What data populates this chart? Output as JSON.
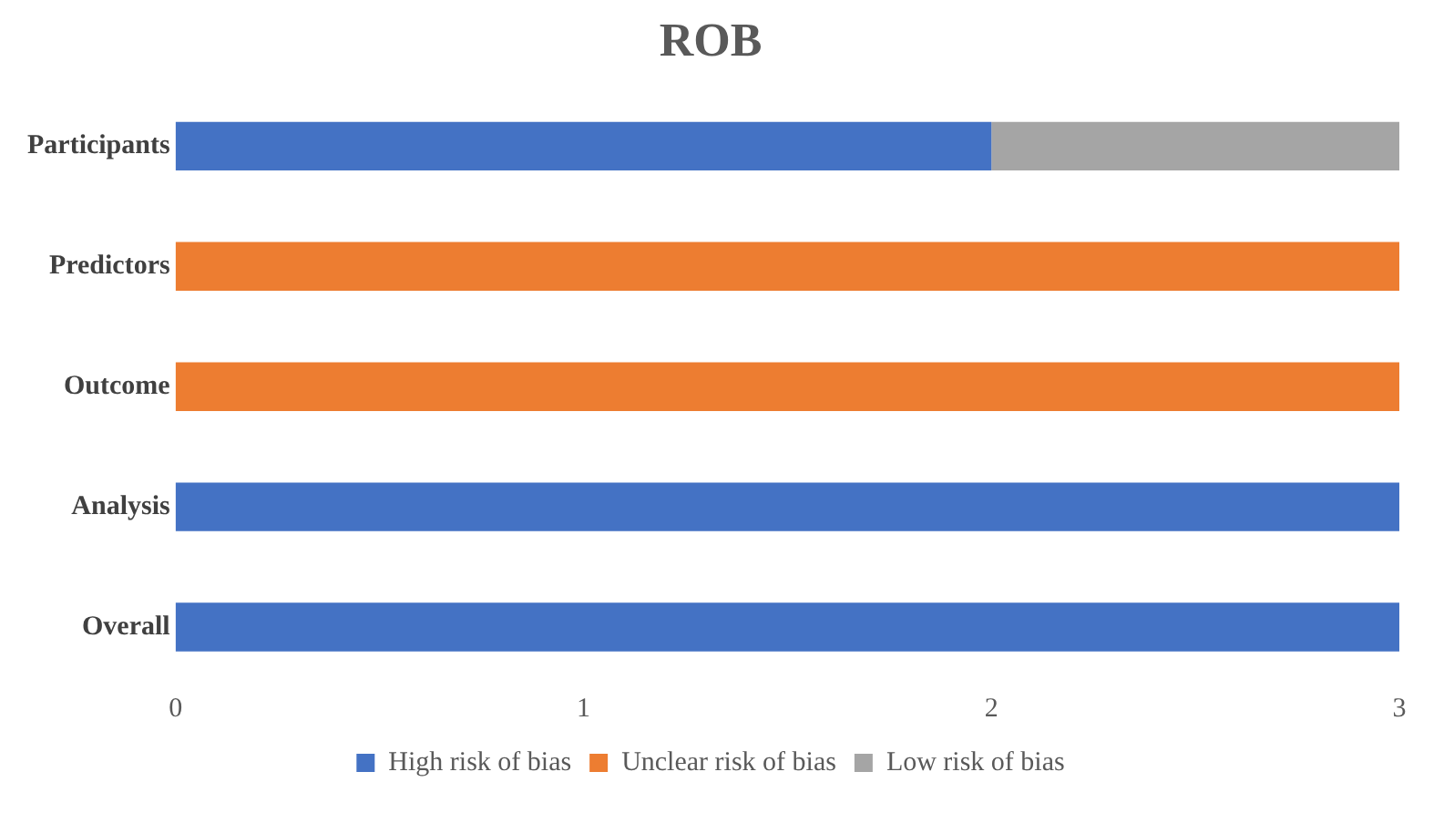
{
  "chart_data": {
    "type": "bar",
    "title": "ROB",
    "orientation": "horizontal",
    "stacked": true,
    "categories": [
      "Participants",
      "Predictors",
      "Outcome",
      "Analysis",
      "Overall"
    ],
    "series": [
      {
        "name": "High risk of bias",
        "color": "#4472c4",
        "values": [
          2,
          0,
          0,
          3,
          3
        ]
      },
      {
        "name": "Unclear risk of bias",
        "color": "#ed7d31",
        "values": [
          0,
          3,
          3,
          0,
          0
        ]
      },
      {
        "name": "Low risk of bias",
        "color": "#a5a5a5",
        "values": [
          1,
          0,
          0,
          0,
          0
        ]
      }
    ],
    "xlim": [
      0,
      3
    ],
    "xticks": [
      0,
      1,
      2,
      3
    ],
    "grid": false,
    "legend": "bottom"
  }
}
